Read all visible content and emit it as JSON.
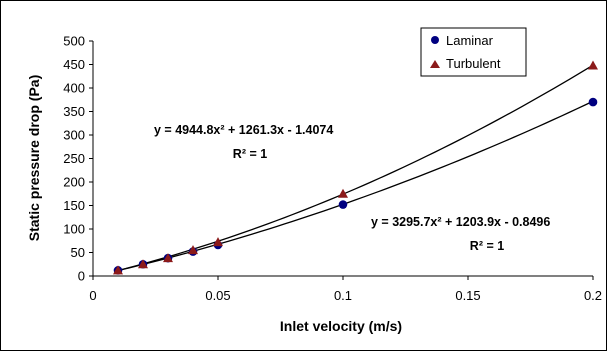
{
  "chart_data": {
    "type": "scatter",
    "title": "",
    "xlabel": "Inlet velocity (m/s)",
    "ylabel": "Static pressure drop (Pa)",
    "xlim": [
      0,
      0.2
    ],
    "ylim": [
      0,
      500
    ],
    "x_ticks": [
      "0",
      "0.05",
      "0.1",
      "0.15",
      "0.2"
    ],
    "y_ticks": [
      "0",
      "50",
      "100",
      "150",
      "200",
      "250",
      "300",
      "350",
      "400",
      "450",
      "500"
    ],
    "grid": false,
    "legend_position": "top-right",
    "series": [
      {
        "name": "Laminar",
        "marker": "circle",
        "color": "#000080",
        "x": [
          0.01,
          0.02,
          0.03,
          0.04,
          0.05,
          0.1,
          0.2
        ],
        "y": [
          12,
          25,
          38,
          52,
          66,
          152,
          370
        ],
        "trendline": {
          "coefficients": [
            3295.7,
            1203.9,
            -0.8496
          ],
          "equation": "y = 3295.7x² + 1203.9x - 0.8496",
          "r_squared": "R² = 1"
        }
      },
      {
        "name": "Turbulent",
        "marker": "triangle",
        "color": "#8b1a1a",
        "x": [
          0.01,
          0.02,
          0.03,
          0.04,
          0.05,
          0.1,
          0.2
        ],
        "y": [
          12,
          25,
          38,
          55,
          72,
          175,
          448
        ],
        "trendline": {
          "coefficients": [
            4944.8,
            1261.3,
            -1.4074
          ],
          "equation": "y = 4944.8x² + 1261.3x - 1.4074",
          "r_squared": "R² = 1"
        }
      }
    ]
  }
}
